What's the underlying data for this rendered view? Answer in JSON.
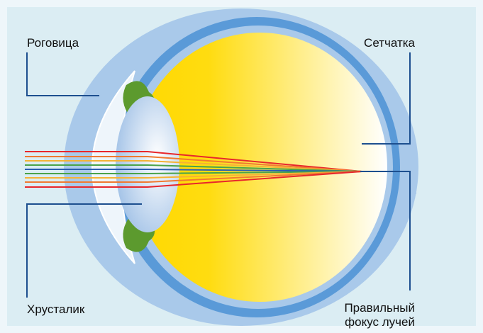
{
  "labels": [
    {
      "text": "Роговица"
    },
    {
      "text": "Сетчатка"
    },
    {
      "text": "Хрусталик"
    },
    {
      "lines": [
        "Правильный",
        "фокус лучей"
      ]
    }
  ]
}
